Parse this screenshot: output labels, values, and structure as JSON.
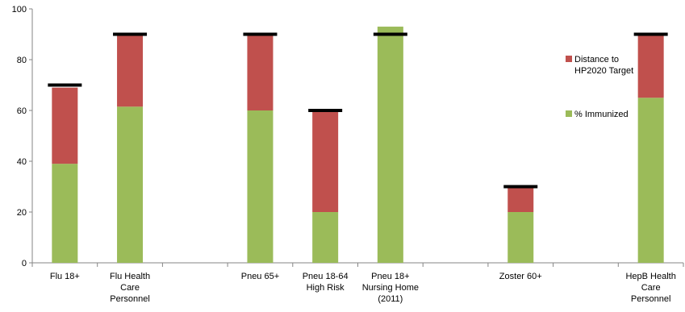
{
  "chart_data": {
    "type": "bar",
    "stacked": true,
    "categories": [
      [
        "Flu 18+"
      ],
      [
        "Flu Health",
        "Care",
        "Personnel"
      ],
      [],
      [
        "Pneu 65+"
      ],
      [
        "Pneu 18-64",
        "High Risk"
      ],
      [
        "Pneu 18+",
        "Nursing Home",
        "(2011)"
      ],
      [],
      [
        "Zoster 60+"
      ],
      [],
      [
        "HepB Health",
        "Care",
        "Personnel"
      ]
    ],
    "series": [
      {
        "name": "% Immunized",
        "color": "#9bbb59",
        "values": [
          39,
          61.5,
          null,
          60,
          20,
          93,
          null,
          20,
          null,
          65
        ]
      },
      {
        "name": "Distance to HP2020 Target",
        "color": "#c0504d",
        "values": [
          30,
          28.5,
          null,
          30,
          40,
          0,
          null,
          10,
          null,
          25
        ]
      }
    ],
    "target_marker": {
      "color": "#000000",
      "values": [
        70,
        90,
        null,
        90,
        60,
        90,
        null,
        30,
        null,
        90
      ]
    },
    "legend": [
      {
        "lines": [
          "Distance to",
          "HP2020 Target"
        ],
        "color": "#c0504d"
      },
      {
        "lines": [
          "% Immunized"
        ],
        "color": "#9bbb59"
      }
    ],
    "legend_position": "right",
    "ylim": [
      0,
      100
    ],
    "yticks": [
      0,
      20,
      40,
      60,
      80,
      100
    ],
    "xlabel": "",
    "ylabel": "",
    "grid": false
  }
}
